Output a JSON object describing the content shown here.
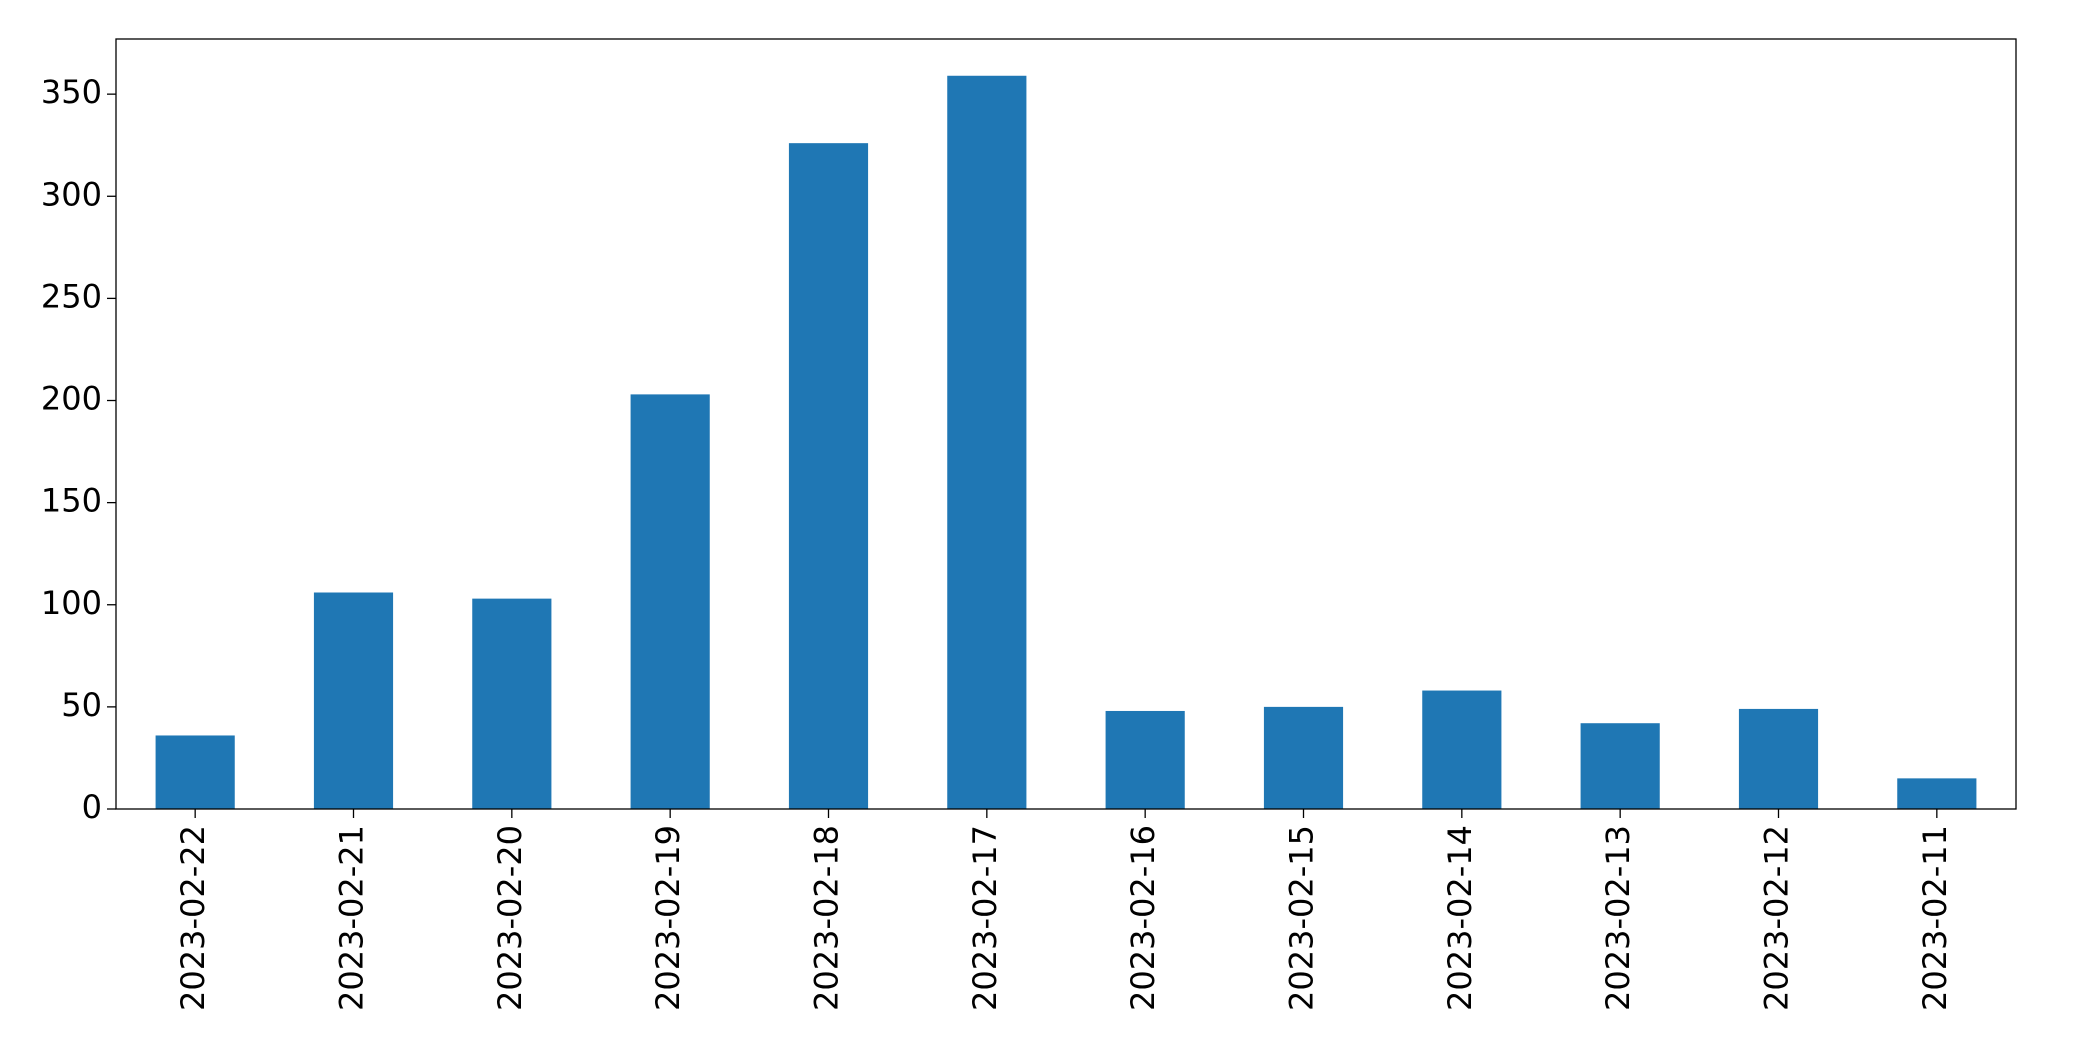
{
  "chart_data": {
    "type": "bar",
    "categories": [
      "2023-02-22",
      "2023-02-21",
      "2023-02-20",
      "2023-02-19",
      "2023-02-18",
      "2023-02-17",
      "2023-02-16",
      "2023-02-15",
      "2023-02-14",
      "2023-02-13",
      "2023-02-12",
      "2023-02-11"
    ],
    "values": [
      36,
      106,
      103,
      203,
      326,
      359,
      48,
      50,
      58,
      42,
      49,
      15
    ],
    "color": "#1f77b4",
    "ylim": [
      0,
      377
    ],
    "yticks": [
      0,
      50,
      100,
      150,
      200,
      250,
      300,
      350
    ],
    "grid": false
  }
}
